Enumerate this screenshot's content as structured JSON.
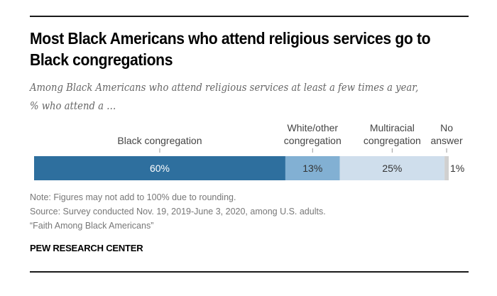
{
  "header": {
    "title": "Most Black Americans who attend religious services go to Black congregations",
    "subtitle": "Among Black Americans who attend religious services at least a few times a year, % who attend a …"
  },
  "chart_data": {
    "type": "bar",
    "orientation": "horizontal-stacked",
    "title": "Most Black Americans who attend religious services go to Black congregations",
    "subtitle": "Among Black Americans who attend religious services at least a few times a year, % who attend a …",
    "xlabel": "",
    "ylabel": "",
    "categories": [
      "Black congregation",
      "White/other congregation",
      "Multiracial congregation",
      "No answer"
    ],
    "label_lines": [
      [
        "Black congregation"
      ],
      [
        "White/other",
        "congregation"
      ],
      [
        "Multiracial",
        "congregation"
      ],
      [
        "No",
        "answer"
      ]
    ],
    "values": [
      60,
      13,
      25,
      1
    ],
    "value_labels": [
      "60%",
      "13%",
      "25%",
      "1%"
    ],
    "colors": [
      "#2e6f9e",
      "#82b0d3",
      "#cfdeec",
      "#d0d0d0"
    ],
    "label_colors": [
      "#ffffff",
      "#333333",
      "#333333",
      "#333333"
    ],
    "xlim": [
      0,
      99
    ],
    "grid": false,
    "legend": "labels-above-segments"
  },
  "footer": {
    "note": "Note: Figures may not add to 100% due to rounding.",
    "source": "Source: Survey conducted Nov. 19, 2019-June 3, 2020, among U.S. adults.",
    "report": "“Faith Among Black Americans”",
    "brand": "PEW RESEARCH CENTER"
  }
}
